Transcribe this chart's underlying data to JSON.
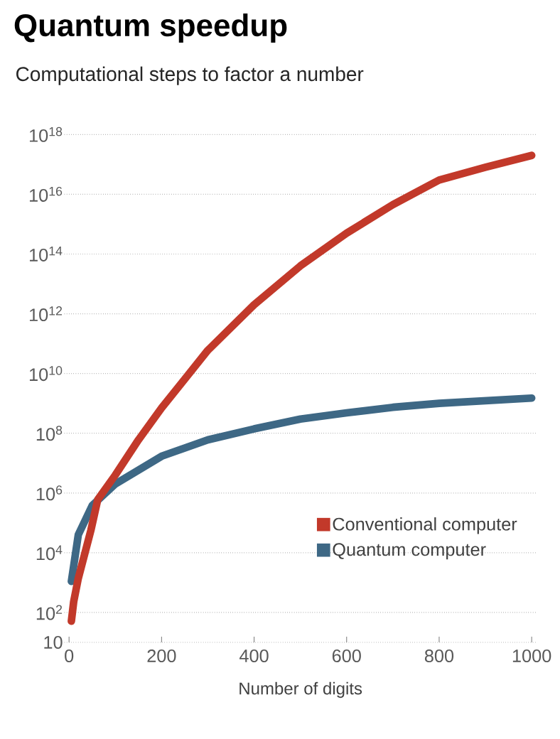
{
  "chart_data": {
    "type": "line",
    "title": "Quantum speedup",
    "subtitle": "Computational steps to factor a number",
    "xlabel": "Number of digits",
    "series": [
      {
        "name": "Conventional computer",
        "color": "#c2392a",
        "x": [
          5,
          10,
          20,
          47,
          62,
          100,
          150,
          200,
          300,
          400,
          500,
          600,
          700,
          800,
          900,
          1000
        ],
        "values": [
          51,
          230,
          1400,
          55000,
          600000,
          4000000,
          60000000,
          700000000,
          60000000000,
          2000000000000,
          40000000000000,
          500000000000000,
          4500000000000000,
          30000000000000000,
          80000000000000000,
          200000000000000000
        ]
      },
      {
        "name": "Quantum computer",
        "color": "#3e6885",
        "x": [
          5,
          20,
          50,
          100,
          200,
          300,
          400,
          500,
          600,
          700,
          800,
          1000
        ],
        "values": [
          1100,
          40000,
          380000,
          2000000,
          17000000,
          60000000,
          140000000,
          300000000,
          480000000,
          740000000,
          1000000000,
          1500000000
        ]
      }
    ],
    "xlim": [
      -10,
      1010
    ],
    "ylim": [
      10,
      1e+18
    ],
    "log": "y",
    "xticks": [
      0,
      200,
      400,
      600,
      800,
      1000
    ],
    "yticks": [
      10,
      {
        "value": 100.0,
        "label": "10$^{2}$"
      },
      {
        "value": 10000.0,
        "label": "10$^{4}$"
      },
      {
        "value": 1000000.0,
        "label": "10$^{6}$"
      },
      {
        "value": 100000000.0,
        "label": "10$^{8}$"
      },
      {
        "value": 10000000000.0,
        "label": "10$^{10}$"
      },
      {
        "value": 1000000000000.0,
        "label": "10$^{12}$"
      },
      {
        "value": 100000000000000.0,
        "label": "10$^{14}$"
      },
      {
        "value": 1e+16,
        "label": "10$^{16}$"
      },
      {
        "value": 1e+18,
        "label": "10$^{18}$"
      }
    ],
    "grid": "y",
    "legend": "bottom right",
    "marker": "none",
    "line_style": "solid"
  }
}
